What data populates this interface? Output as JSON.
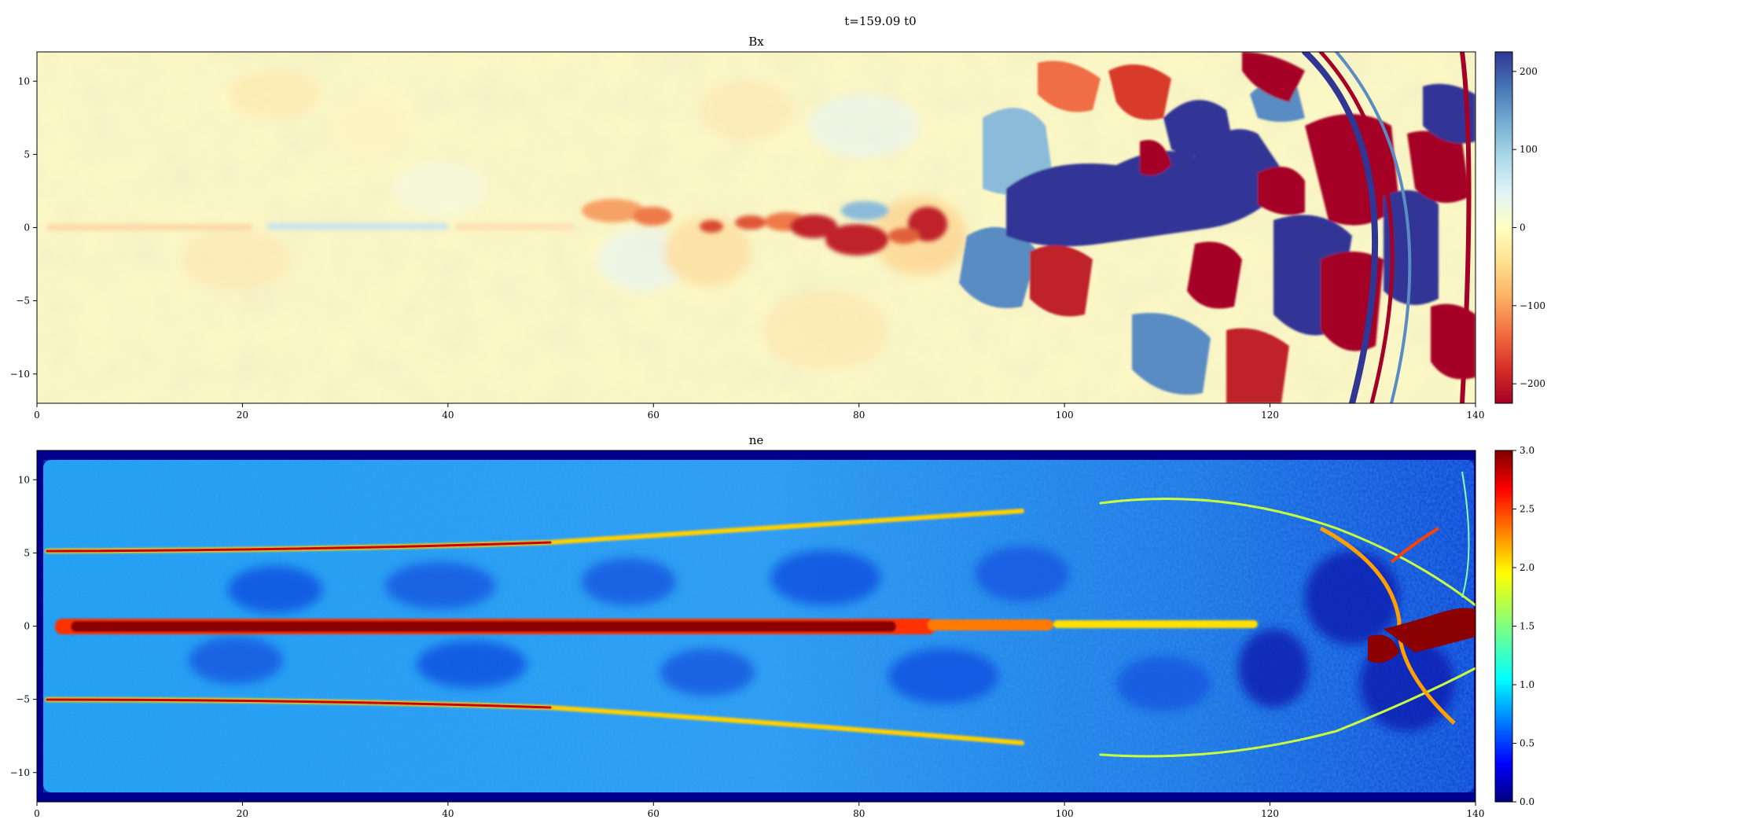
{
  "figure": {
    "suptitle": "t=159.09 t0"
  },
  "chart_data": [
    {
      "type": "heatmap",
      "title": "Bx",
      "xlabel": "",
      "ylabel": "",
      "xlim": [
        0,
        140
      ],
      "ylim": [
        -12,
        12
      ],
      "xticks": [
        0,
        20,
        40,
        60,
        80,
        100,
        120,
        140
      ],
      "yticks": [
        10,
        5,
        0,
        -5,
        -10
      ],
      "colormap": "RdYlBu",
      "color_range": [
        -225,
        225
      ],
      "colorbar_ticks": [
        200,
        100,
        0,
        -100,
        -200
      ],
      "colorbar_tick_labels": [
        "200",
        "100",
        "0",
        "−100",
        "−200"
      ],
      "colors": {
        "low": "#a50026",
        "mid": "#ffffbf",
        "high": "#313695"
      },
      "grid": false,
      "features": "near zero for x<50; alternating +/- structures along y=0 from x≈55-90; strong +/- lobes (|Bx|>200) for x>90 with wave fronts near x≈125-140"
    },
    {
      "type": "heatmap",
      "title": "ne",
      "xlabel": "",
      "ylabel": "",
      "xlim": [
        0,
        140
      ],
      "ylim": [
        -12,
        12
      ],
      "xticks": [
        0,
        20,
        40,
        60,
        80,
        100,
        120,
        140
      ],
      "yticks": [
        10,
        5,
        0,
        -5,
        -10
      ],
      "colormap": "jet",
      "color_range": [
        0.0,
        3.0
      ],
      "colorbar_ticks": [
        3.0,
        2.5,
        2.0,
        1.5,
        1.0,
        0.5,
        0.0
      ],
      "colorbar_tick_labels": [
        "3.0",
        "2.5",
        "2.0",
        "1.5",
        "1.0",
        "0.5",
        "0.0"
      ],
      "colors": {
        "low": "#00007f",
        "mid": "#7fff7f",
        "high": "#7f0000"
      },
      "grid": false,
      "features": "dense channel (ne≥3) along y=0 for x≈2-90; thin dense walls near y=±5 diverging to y≈±7 by x≈90; background ne≈1; low density near x≈120-135; shock front near x≈125-140"
    }
  ]
}
